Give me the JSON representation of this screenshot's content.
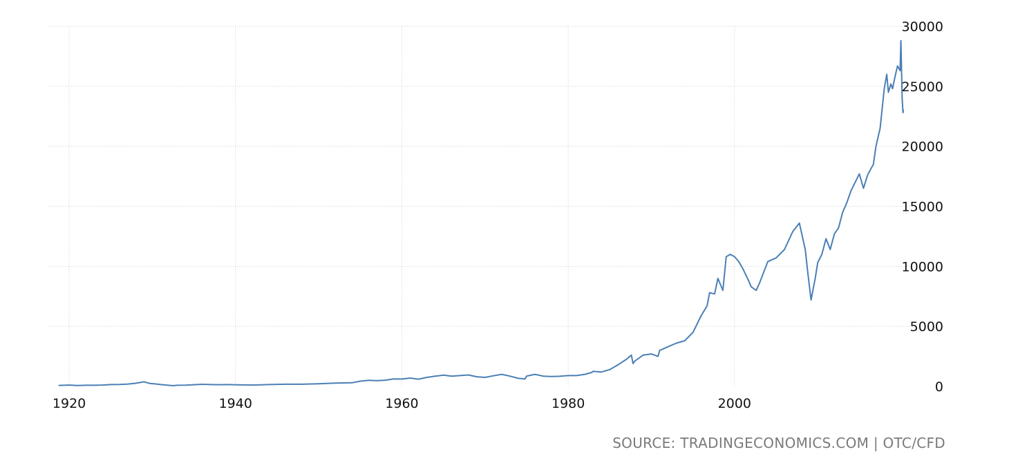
{
  "source_text": "SOURCE: TRADINGECONOMICS.COM | OTC/CFD",
  "chart_data": {
    "type": "line",
    "title": "",
    "xlabel": "",
    "ylabel": "",
    "xlim": [
      1917.5,
      2021.2
    ],
    "ylim": [
      0,
      30000
    ],
    "x_ticks": [
      1920,
      1940,
      1960,
      1980,
      2000
    ],
    "x_tick_labels": [
      "1920",
      "1940",
      "1960",
      "1980",
      "2000"
    ],
    "y_ticks": [
      0,
      5000,
      10000,
      15000,
      20000,
      25000,
      30000
    ],
    "y_tick_labels": [
      "0",
      "5000",
      "10000",
      "15000",
      "20000",
      "25000",
      "30000"
    ],
    "y_axis_position": "right",
    "grid": true,
    "legend": "none",
    "line_color": "#4a7fb5",
    "series": [
      {
        "x": [
          1918.8,
          1920,
          1921,
          1922,
          1923,
          1924,
          1925,
          1926,
          1927,
          1928,
          1929.0,
          1929.7,
          1930.2,
          1931,
          1932.5,
          1933,
          1934,
          1935,
          1936,
          1937,
          1938,
          1939,
          1940,
          1941,
          1942,
          1944,
          1946,
          1948,
          1950,
          1952,
          1954,
          1955,
          1956,
          1957,
          1958,
          1959,
          1960,
          1961,
          1962,
          1963,
          1964,
          1965,
          1966,
          1967,
          1968,
          1969,
          1970,
          1971,
          1972,
          1973,
          1974,
          1974.8,
          1975,
          1976,
          1977,
          1978,
          1979,
          1980,
          1981,
          1982,
          1982.8,
          1983,
          1984,
          1985,
          1986,
          1987,
          1987.6,
          1987.8,
          1988,
          1989,
          1990,
          1990.8,
          1991,
          1992,
          1993,
          1994,
          1995,
          1996,
          1996.7,
          1997,
          1997.6,
          1998,
          1998.6,
          1999,
          1999.5,
          2000,
          2000.5,
          2001,
          2001.7,
          2002,
          2002.6,
          2003,
          2003.5,
          2004,
          2005,
          2006,
          2007,
          2007.8,
          2008.5,
          2008.8,
          2009.2,
          2009.7,
          2010,
          2010.5,
          2011,
          2011.5,
          2012,
          2012.5,
          2013,
          2013.5,
          2014,
          2014.5,
          2015,
          2015.5,
          2016,
          2016.3,
          2016.7,
          2017,
          2017.5,
          2018,
          2018.3,
          2018.5,
          2018.8,
          2019,
          2019.3,
          2019.6,
          2019.9,
          2020.0,
          2020.15,
          2020.25,
          2020.3
        ],
        "y": [
          80,
          110,
          70,
          90,
          95,
          110,
          150,
          160,
          190,
          260,
          380,
          240,
          220,
          150,
          60,
          90,
          100,
          140,
          170,
          150,
          140,
          150,
          130,
          120,
          110,
          150,
          180,
          180,
          220,
          270,
          300,
          430,
          500,
          470,
          510,
          620,
          610,
          690,
          600,
          750,
          850,
          930,
          850,
          900,
          950,
          800,
          750,
          880,
          1000,
          850,
          670,
          620,
          850,
          1000,
          850,
          820,
          840,
          900,
          900,
          1000,
          1150,
          1250,
          1200,
          1400,
          1800,
          2250,
          2600,
          1900,
          2100,
          2600,
          2700,
          2500,
          3000,
          3300,
          3600,
          3800,
          4500,
          5900,
          6700,
          7800,
          7700,
          9000,
          8000,
          10800,
          11000,
          10800,
          10400,
          9800,
          8800,
          8300,
          8000,
          8600,
          9500,
          10400,
          10700,
          11400,
          12900,
          13600,
          11400,
          9500,
          7200,
          9000,
          10300,
          11000,
          12300,
          11400,
          12700,
          13200,
          14500,
          15300,
          16300,
          17000,
          17700,
          16500,
          17600,
          18000,
          18500,
          20000,
          21500,
          24800,
          26000,
          24500,
          25200,
          24800,
          25800,
          26700,
          26300,
          28800,
          24000,
          22800,
          23000
        ]
      }
    ]
  }
}
